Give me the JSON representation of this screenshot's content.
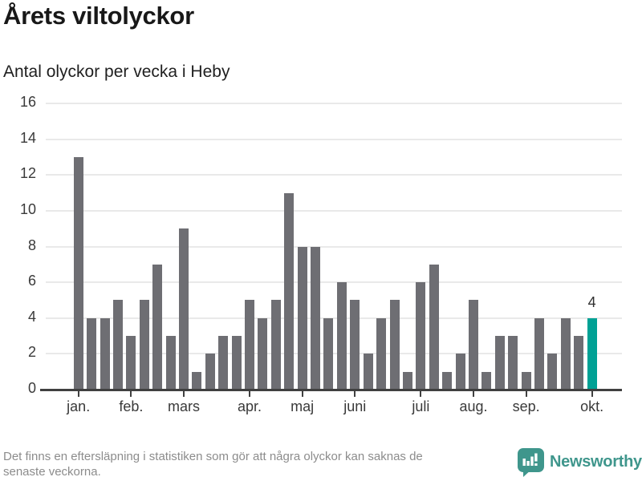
{
  "chart_data": {
    "type": "bar",
    "title": "Årets viltolyckor",
    "subtitle": "Antal olyckor per vecka i Heby",
    "x_unit": "vecka",
    "values": [
      13,
      4,
      4,
      5,
      3,
      5,
      7,
      3,
      9,
      1,
      2,
      3,
      3,
      5,
      4,
      5,
      11,
      8,
      8,
      4,
      6,
      5,
      2,
      4,
      5,
      1,
      6,
      7,
      1,
      2,
      5,
      1,
      3,
      3,
      1,
      4,
      2,
      4,
      3,
      4
    ],
    "highlight_index": 39,
    "highlight_value_label": "4",
    "month_ticks": [
      {
        "label": "jan.",
        "index": 0
      },
      {
        "label": "feb.",
        "index": 4
      },
      {
        "label": "mars",
        "index": 8
      },
      {
        "label": "apr.",
        "index": 13
      },
      {
        "label": "maj",
        "index": 17
      },
      {
        "label": "juni",
        "index": 21
      },
      {
        "label": "juli",
        "index": 26
      },
      {
        "label": "aug.",
        "index": 30
      },
      {
        "label": "sep.",
        "index": 34
      },
      {
        "label": "okt.",
        "index": 39
      }
    ],
    "yticks": [
      0,
      2,
      4,
      6,
      8,
      10,
      12,
      14,
      16
    ],
    "ylim": [
      0,
      16
    ],
    "grid": true,
    "legend_position": "none",
    "colors": {
      "bar": "#6e6e73",
      "highlight": "#00a195",
      "grid": "#e9e9e9",
      "axis": "#404040"
    }
  },
  "footer": {
    "disclaimer_line1": "Det finns en eftersläpning i statistiken som gör att några olyckor kan saknas de",
    "disclaimer_line2": "senaste veckorna.",
    "brand": "Newsworthy",
    "brand_color": "#3f968c"
  }
}
